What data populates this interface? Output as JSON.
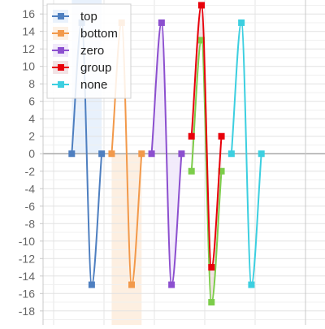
{
  "chart_data": {
    "type": "line",
    "title": "",
    "xlabel": "",
    "ylabel": "",
    "ylim": [
      -19.6,
      17.6
    ],
    "yticks": [
      16,
      14,
      12,
      10,
      8,
      6,
      4,
      2,
      0,
      -2,
      -4,
      -6,
      -8,
      -10,
      -12,
      -14,
      -16,
      -18
    ],
    "xlim": [
      -0.65,
      10.65
    ],
    "grid": true,
    "legend": "top-left",
    "series": [
      {
        "name": "top",
        "color": "#4e7fc0",
        "fill": "top",
        "fill_color": "#e8f1fc",
        "points": [
          [
            0.5,
            0
          ],
          [
            0.9,
            15
          ],
          [
            1.3,
            -15
          ],
          [
            1.7,
            0
          ]
        ]
      },
      {
        "name": "bottom",
        "color": "#f2994a",
        "fill": "bottom",
        "fill_color": "#fdefe1",
        "points": [
          [
            2.1,
            0
          ],
          [
            2.5,
            15
          ],
          [
            2.9,
            -15
          ],
          [
            3.3,
            0
          ]
        ]
      },
      {
        "name": "zero",
        "color": "#8c4fcf",
        "fill": "zero",
        "fill_color": "#f0e7fa",
        "points": [
          [
            3.7,
            0
          ],
          [
            4.1,
            15
          ],
          [
            4.5,
            -15
          ],
          [
            4.9,
            0
          ]
        ]
      },
      {
        "name": "group",
        "color": "#e8000a",
        "fill": "group",
        "fill_color": "#f1dfe1",
        "group_points": [
          [
            5.3,
            -2
          ],
          [
            5.7,
            13
          ],
          [
            6.1,
            -17
          ],
          [
            6.5,
            -2
          ]
        ],
        "group_color": "#7ccd4a",
        "points": [
          [
            5.3,
            2
          ],
          [
            5.7,
            17
          ],
          [
            6.1,
            -13
          ],
          [
            6.5,
            2
          ]
        ]
      },
      {
        "name": "none",
        "color": "#3ccfe0",
        "fill": "none",
        "points": [
          [
            6.9,
            0
          ],
          [
            7.3,
            15
          ],
          [
            7.7,
            -15
          ],
          [
            8.1,
            0
          ]
        ]
      }
    ]
  }
}
